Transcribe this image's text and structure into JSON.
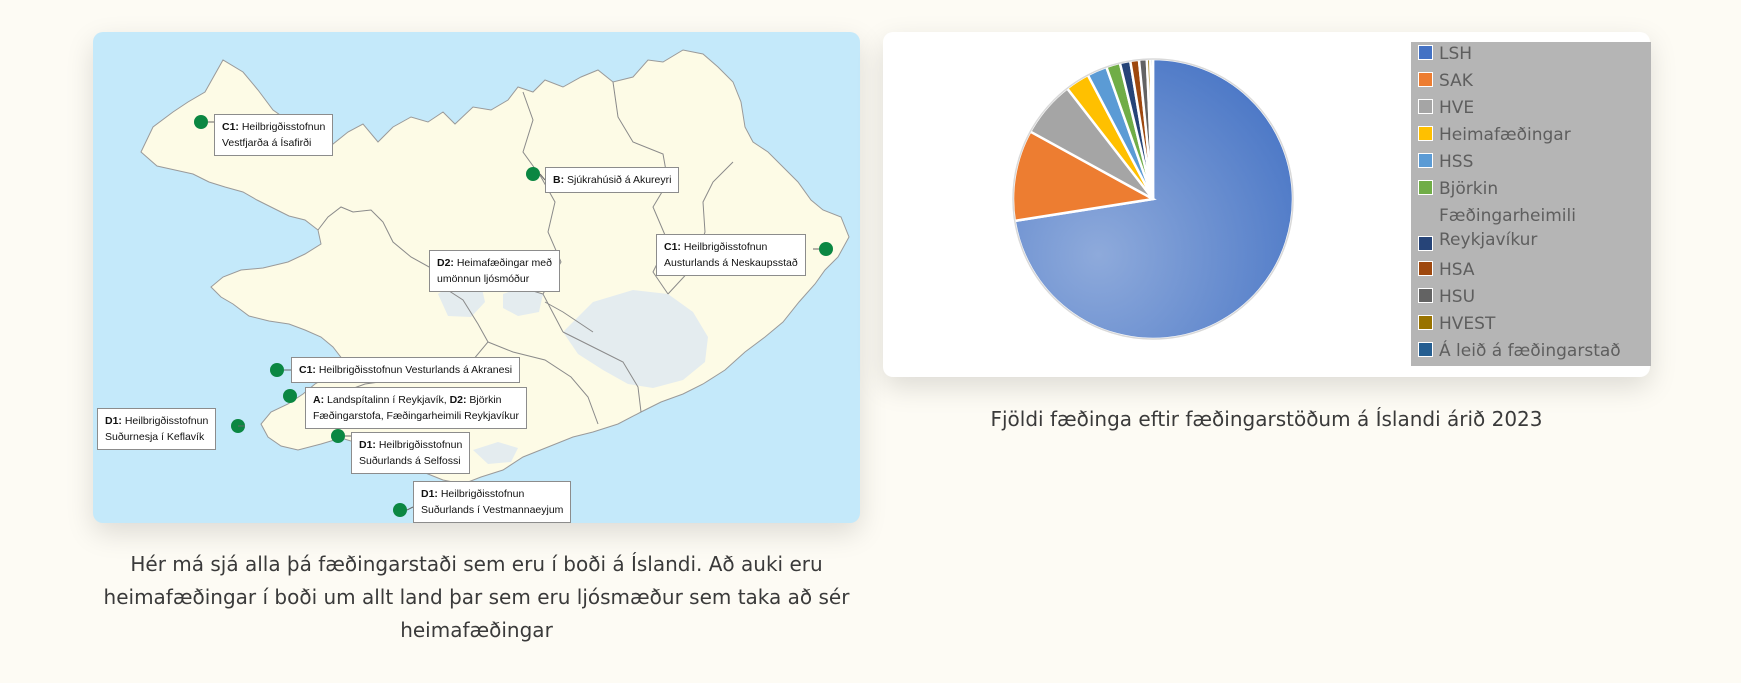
{
  "map": {
    "caption": "Hér má sjá alla þá fæðingarstaði sem eru í boði á Íslandi. Að auki eru heimafæðingar í boði um allt land þar sem eru ljósmæður sem taka að sér heimafæðingar",
    "labels": [
      {
        "code": "C1:",
        "line1": " Heilbrigðisstofnun",
        "line2": "Vestfjarða á Ísafirði"
      },
      {
        "code": "B:",
        "line1": " Sjúkrahúsið á Akureyri",
        "line2": ""
      },
      {
        "code": "C1:",
        "line1": " Heilbrigðisstofnun",
        "line2": "Austurlands á Neskaupsstað"
      },
      {
        "code": "D2:",
        "line1": " Heimafæðingar með",
        "line2": "umönnun ljósmóður"
      },
      {
        "code": "C1:",
        "line1": " Heilbrigðisstofnun Vesturlands á Akranesi",
        "line2": ""
      },
      {
        "code": "A:",
        "line1": " Landspítalinn í Reykjavík, ",
        "code2": "D2:",
        "line1b": " Björkin",
        "line2": "Fæðingarstofa, Fæðingarheimili Reykjavíkur"
      },
      {
        "code": "D1:",
        "line1": " Heilbrigðisstofnun",
        "line2": "Suðurnesja í Keflavík"
      },
      {
        "code": "D1:",
        "line1": " Heilbrigðisstofnun",
        "line2": "Suðurlands á Selfossi"
      },
      {
        "code": "D1:",
        "line1": " Heilbrigðisstofnun",
        "line2": "Suðurlands í Vestmannaeyjum"
      }
    ]
  },
  "pie": {
    "caption": "Fjöldi fæðinga eftir fæðingarstöðum á Íslandi árið 2023",
    "legend": [
      {
        "label": "LSH",
        "color": "#4472c4"
      },
      {
        "label": "SAK",
        "color": "#ed7d31"
      },
      {
        "label": "HVE",
        "color": "#a5a5a5"
      },
      {
        "label": "Heimafæðingar",
        "color": "#ffc000"
      },
      {
        "label": "HSS",
        "color": "#5b9bd5"
      },
      {
        "label": "Björkin",
        "color": "#70ad47"
      },
      {
        "label": "Fæðingarheimili Reykjavíkur",
        "color": "#264478"
      },
      {
        "label": "HSA",
        "color": "#9e480e"
      },
      {
        "label": "HSU",
        "color": "#636363"
      },
      {
        "label": "HVEST",
        "color": "#997300"
      },
      {
        "label": "Á leið á fæðingarstað",
        "color": "#255e91"
      }
    ],
    "chart_data": {
      "type": "pie",
      "categories": [
        "LSH",
        "SAK",
        "HVE",
        "Heimafæðingar",
        "HSS",
        "Björkin",
        "Fæðingarheimili Reykjavíkur",
        "HSA",
        "HSU",
        "HVEST",
        "Á leið á fæðingarstað"
      ],
      "values": [
        72.5,
        10.5,
        6.5,
        2.8,
        2.3,
        1.6,
        1.2,
        1.0,
        0.9,
        0.4,
        0.3
      ],
      "title": "",
      "legend_position": "right"
    }
  }
}
